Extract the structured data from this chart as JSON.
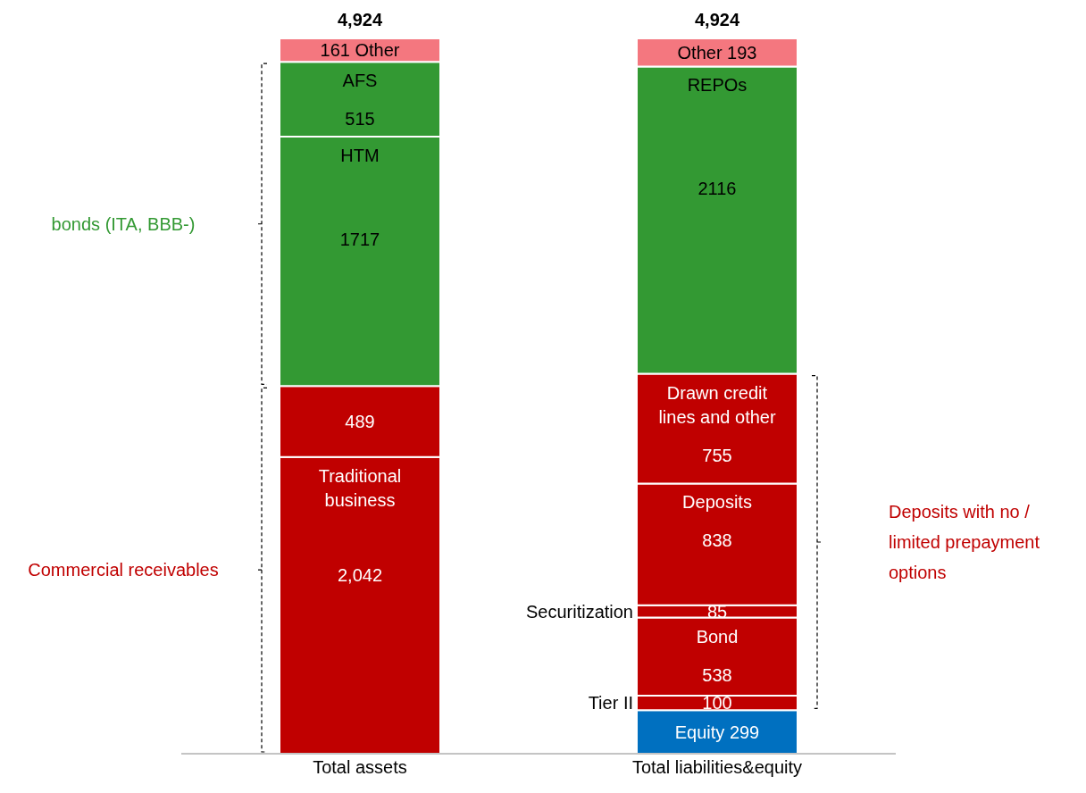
{
  "chart_data": {
    "type": "bar",
    "stacked": true,
    "categories": [
      "Total assets",
      "Total liabilities&equity"
    ],
    "series": [
      {
        "name": "Traditional business",
        "color": "#c00000",
        "values": [
          2042,
          null
        ],
        "value_labels": [
          "2,042",
          null
        ]
      },
      {
        "color": "#c00000",
        "values": [
          489,
          null
        ],
        "value_labels": [
          "489",
          null
        ]
      },
      {
        "name": "HTM",
        "color": "#339933",
        "values": [
          1717,
          null
        ],
        "value_labels": [
          "1717",
          null
        ]
      },
      {
        "name": "AFS",
        "color": "#339933",
        "values": [
          515,
          null
        ],
        "value_labels": [
          "515",
          null
        ]
      },
      {
        "name": "Other",
        "color": "#f4777f",
        "values": [
          161,
          null
        ],
        "value_labels": [
          "161",
          null
        ]
      },
      {
        "name": "Equity",
        "color": "#0070c0",
        "values": [
          null,
          299
        ],
        "value_labels": [
          null,
          "299"
        ]
      },
      {
        "name": "Tier II",
        "color": "#c00000",
        "values": [
          null,
          100
        ],
        "value_labels": [
          null,
          "100"
        ]
      },
      {
        "name": "Bond",
        "color": "#c00000",
        "values": [
          null,
          538
        ],
        "value_labels": [
          null,
          "538"
        ]
      },
      {
        "name": "Securitization",
        "color": "#c00000",
        "values": [
          null,
          85
        ],
        "value_labels": [
          null,
          "85"
        ]
      },
      {
        "name": "Deposits",
        "color": "#c00000",
        "values": [
          null,
          838
        ],
        "value_labels": [
          null,
          "838"
        ]
      },
      {
        "name": "Drawn credit lines and other",
        "color": "#c00000",
        "values": [
          null,
          755
        ],
        "value_labels": [
          null,
          "755"
        ]
      },
      {
        "name": "REPOs",
        "color": "#339933",
        "values": [
          null,
          2116
        ],
        "value_labels": [
          null,
          "2116"
        ]
      },
      {
        "name": "Other",
        "color": "#f4777f",
        "values": [
          null,
          193
        ],
        "value_labels": [
          null,
          "193"
        ]
      }
    ],
    "totals": [
      "4,924",
      "4,924"
    ],
    "annotations": [
      "bonds (ITA, BBB-)",
      "Commercial receivables",
      "Deposits with no / limited prepayment options"
    ],
    "legend": false,
    "grid": false
  }
}
